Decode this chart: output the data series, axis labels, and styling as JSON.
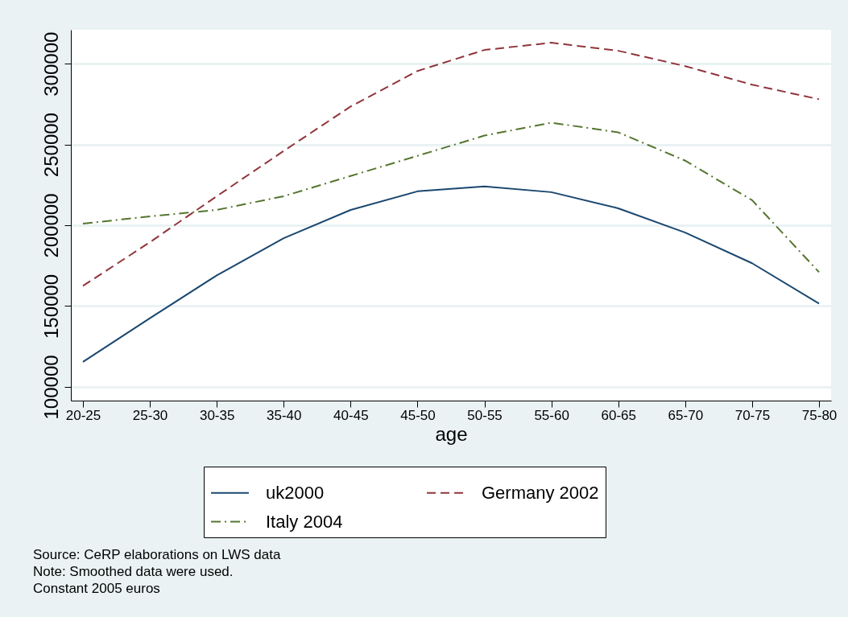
{
  "chart_data": {
    "type": "line",
    "xlabel": "age",
    "categories": [
      "20-25",
      "25-30",
      "30-35",
      "35-40",
      "40-45",
      "45-50",
      "50-55",
      "55-60",
      "60-65",
      "65-70",
      "70-75",
      "75-80"
    ],
    "series": [
      {
        "name": "uk2000",
        "color": "#1a476f",
        "line_style": "solid",
        "values": [
          115500,
          142500,
          169000,
          192000,
          209500,
          221000,
          224000,
          220500,
          210500,
          195500,
          176500,
          151500
        ]
      },
      {
        "name": "Germany 2002",
        "color": "#90353b",
        "line_style": "dashed",
        "values": [
          162500,
          189500,
          218000,
          246000,
          273500,
          295500,
          308500,
          313000,
          308000,
          298500,
          287000,
          278000
        ]
      },
      {
        "name": "Italy 2004",
        "color": "#55752f",
        "line_style": "dashdot",
        "values": [
          201000,
          205500,
          209500,
          218000,
          230500,
          243000,
          255500,
          263500,
          257500,
          240000,
          215500,
          171000
        ]
      }
    ],
    "ylim": [
      91500,
      321000
    ],
    "yticks": [
      100000,
      150000,
      200000,
      250000,
      300000
    ],
    "grid": "y",
    "legend": "bottom",
    "marker": "none",
    "annotations": [
      "Source: CeRP elaborations on LWS data",
      "Note: Smoothed data were used.",
      "Constant 2005 euros"
    ]
  }
}
